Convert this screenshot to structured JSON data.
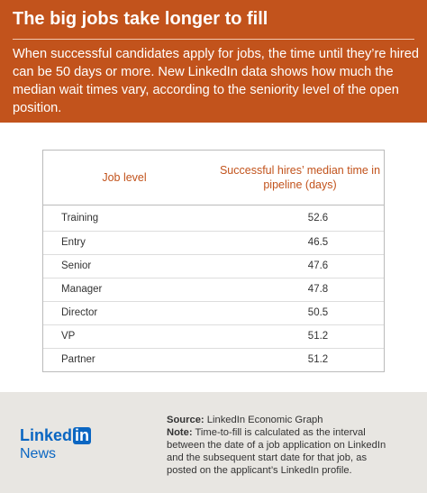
{
  "header": {
    "title": "The big jobs take longer to fill",
    "description": "When successful candidates apply for jobs, the time until they’re hired can be 50 days or more. New LinkedIn data shows how much the median wait times vary, according to the seniority level of the open position."
  },
  "table": {
    "columns": [
      "Job level",
      "Successful hires’ median time in pipeline (days)"
    ],
    "rows": [
      [
        "Training",
        52.6
      ],
      [
        "Entry",
        46.5
      ],
      [
        "Senior",
        47.6
      ],
      [
        "Manager",
        47.8
      ],
      [
        "Director",
        50.5
      ],
      [
        "VP",
        51.2
      ],
      [
        "Partner",
        51.2
      ]
    ]
  },
  "footer": {
    "logo_text": "Linked",
    "logo_badge": "in",
    "brand": "News",
    "source_label": "Source:",
    "source": "LinkedIn Economic Graph",
    "note_label": "Note:",
    "note": "Time-to-fill is calculated as the interval between the date of a job application on LinkedIn and the subsequent start date for that job, as posted on the applicant’s LinkedIn profile."
  }
}
